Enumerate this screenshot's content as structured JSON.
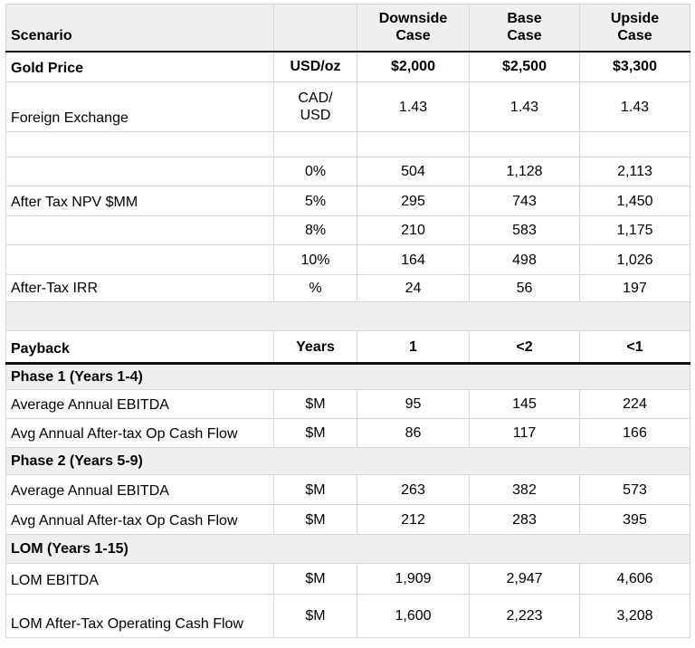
{
  "colors": {
    "header_bg": "#efefef",
    "section_bg": "#efefef",
    "grid_border": "#d7d7d7",
    "strong_border": "#111111"
  },
  "table": {
    "header": {
      "scenario": "Scenario",
      "unit": "",
      "cases": [
        "Downside\nCase",
        "Base\nCase",
        "Upside\nCase"
      ]
    },
    "rows": [
      {
        "type": "data",
        "bold": true,
        "label": "Gold Price",
        "unit": "USD/oz",
        "values": [
          "$2,000",
          "$2,500",
          "$3,300"
        ],
        "height": 34
      },
      {
        "type": "data",
        "bold": false,
        "label": "Foreign Exchange",
        "unit": "CAD/\nUSD",
        "values": [
          "1.43",
          "1.43",
          "1.43"
        ],
        "height": 55
      },
      {
        "type": "data",
        "bold": false,
        "label": "",
        "unit": "",
        "values": [
          "",
          "",
          ""
        ],
        "height": 28
      },
      {
        "type": "data",
        "bold": false,
        "label": "",
        "unit": "0%",
        "values": [
          "504",
          "1,128",
          "2,113"
        ],
        "height": 32
      },
      {
        "type": "data",
        "bold": false,
        "label": "After Tax NPV $MM",
        "unit": "5%",
        "values": [
          "295",
          "743",
          "1,450"
        ],
        "height": 33
      },
      {
        "type": "data",
        "bold": false,
        "label": "",
        "unit": "8%",
        "values": [
          "210",
          "583",
          "1,175"
        ],
        "height": 32
      },
      {
        "type": "data",
        "bold": false,
        "label": "",
        "unit": "10%",
        "values": [
          "164",
          "498",
          "1,026"
        ],
        "height": 33
      },
      {
        "type": "data",
        "bold": false,
        "label": "After-Tax IRR",
        "unit": "%",
        "values": [
          "24",
          "56",
          "197"
        ],
        "height": 30
      },
      {
        "type": "spacer",
        "label": "",
        "height": 32
      },
      {
        "type": "data",
        "bold": true,
        "label": "Payback",
        "unit": "Years",
        "values": [
          "1",
          "<2",
          "<1"
        ],
        "height": 36,
        "thick_after": true
      },
      {
        "type": "section",
        "label": "Phase 1 (Years 1-4)",
        "height": 29
      },
      {
        "type": "data",
        "bold": false,
        "label": "Average Annual EBITDA",
        "unit": "$M",
        "values": [
          "95",
          "145",
          "224"
        ],
        "height": 32
      },
      {
        "type": "data",
        "bold": false,
        "label": "Avg Annual After-tax Op Cash Flow",
        "unit": "$M",
        "values": [
          "86",
          "117",
          "166"
        ],
        "height": 32
      },
      {
        "type": "section",
        "label": "Phase 2 (Years 5-9)",
        "height": 30
      },
      {
        "type": "data",
        "bold": false,
        "label": "Average Annual EBITDA",
        "unit": "$M",
        "values": [
          "263",
          "382",
          "573"
        ],
        "height": 33
      },
      {
        "type": "data",
        "bold": false,
        "label": "Avg Annual After-tax Op Cash Flow",
        "unit": "$M",
        "values": [
          "212",
          "283",
          "395"
        ],
        "height": 33
      },
      {
        "type": "section",
        "label": "LOM (Years 1-15)",
        "height": 32
      },
      {
        "type": "data",
        "bold": false,
        "label": "LOM EBITDA",
        "unit": "$M",
        "values": [
          "1,909",
          "2,947",
          "4,606"
        ],
        "height": 34
      },
      {
        "type": "data",
        "bold": false,
        "label": "LOM After-Tax Operating Cash Flow",
        "unit": "$M",
        "values": [
          "1,600",
          "2,223",
          "3,208"
        ],
        "height": 48
      }
    ]
  }
}
